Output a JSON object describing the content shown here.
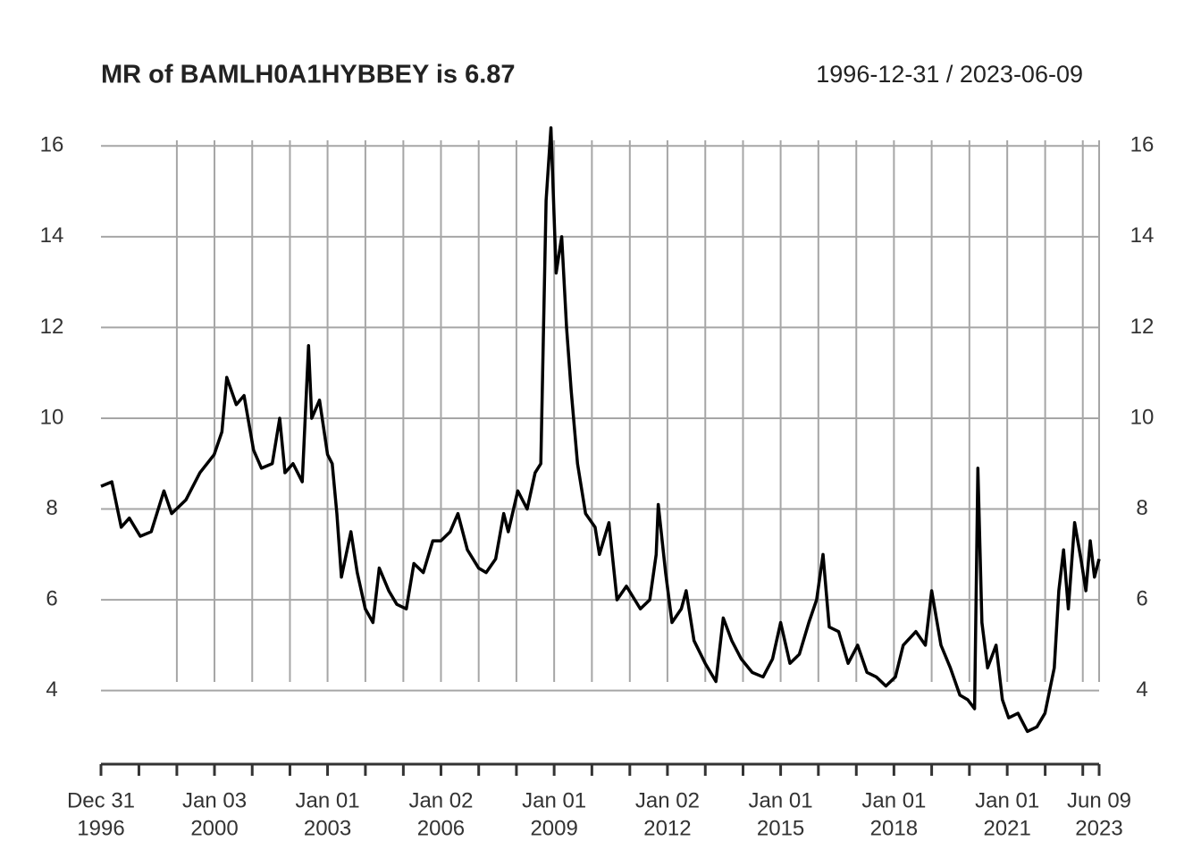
{
  "chart_data": {
    "type": "line",
    "title": "MR of BAMLH0A1HYBBEY is 6.87",
    "subtitle": "1996-12-31 / 2023-06-09",
    "x": [
      "1996-12-31",
      "1997-04-15",
      "1997-07-15",
      "1997-10-01",
      "1998-01-15",
      "1998-05-01",
      "1998-09-01",
      "1998-11-15",
      "1999-04-01",
      "1999-08-15",
      "1999-12-31",
      "2000-03-15",
      "2000-05-01",
      "2000-08-01",
      "2000-10-15",
      "2001-01-15",
      "2001-04-01",
      "2001-07-15",
      "2001-09-25",
      "2001-11-15",
      "2002-02-01",
      "2002-05-01",
      "2002-07-01",
      "2002-08-01",
      "2002-10-15",
      "2003-01-01",
      "2003-02-15",
      "2003-04-01",
      "2003-05-15",
      "2003-08-15",
      "2003-10-15",
      "2004-01-01",
      "2004-03-15",
      "2004-05-15",
      "2004-08-15",
      "2004-11-01",
      "2005-02-01",
      "2005-04-15",
      "2005-07-15",
      "2005-10-15",
      "2006-01-01",
      "2006-04-01",
      "2006-06-15",
      "2006-09-15",
      "2007-01-01",
      "2007-03-15",
      "2007-06-15",
      "2007-09-01",
      "2007-10-15",
      "2008-01-15",
      "2008-04-15",
      "2008-07-01",
      "2008-08-25",
      "2008-10-15",
      "2008-12-01",
      "2009-01-20",
      "2009-03-15",
      "2009-05-01",
      "2009-06-15",
      "2009-08-15",
      "2009-11-01",
      "2010-02-01",
      "2010-03-15",
      "2010-06-15",
      "2010-09-01",
      "2010-12-01",
      "2011-04-15",
      "2011-07-15",
      "2011-09-15",
      "2011-10-05",
      "2011-12-15",
      "2012-02-15",
      "2012-05-15",
      "2012-07-01",
      "2012-09-15",
      "2013-01-01",
      "2013-04-15",
      "2013-06-25",
      "2013-09-15",
      "2013-12-15",
      "2014-04-01",
      "2014-07-15",
      "2014-10-15",
      "2015-01-01",
      "2015-04-01",
      "2015-07-01",
      "2015-10-01",
      "2015-12-15",
      "2016-02-15",
      "2016-04-15",
      "2016-07-15",
      "2016-10-15",
      "2017-01-15",
      "2017-04-15",
      "2017-07-15",
      "2017-10-15",
      "2018-01-15",
      "2018-04-01",
      "2018-08-01",
      "2018-11-01",
      "2019-01-01",
      "2019-04-01",
      "2019-07-01",
      "2019-10-01",
      "2019-12-15",
      "2020-02-20",
      "2020-03-23",
      "2020-05-01",
      "2020-06-25",
      "2020-09-15",
      "2020-11-15",
      "2021-01-15",
      "2021-04-15",
      "2021-07-15",
      "2021-10-15",
      "2022-01-01",
      "2022-04-01",
      "2022-05-15",
      "2022-06-30",
      "2022-08-15",
      "2022-10-15",
      "2022-12-15",
      "2023-02-01",
      "2023-03-15",
      "2023-04-25",
      "2023-06-09"
    ],
    "series": [
      {
        "name": "BAMLH0A1HYBBEY",
        "color": "#000000",
        "values": [
          8.5,
          8.6,
          7.6,
          7.8,
          7.4,
          7.5,
          8.4,
          7.9,
          8.2,
          8.8,
          9.2,
          9.7,
          10.9,
          10.3,
          10.5,
          9.3,
          8.9,
          9.0,
          10.0,
          8.8,
          9.0,
          8.6,
          11.6,
          10.0,
          10.4,
          9.2,
          9.0,
          7.9,
          6.5,
          7.5,
          6.6,
          5.8,
          5.5,
          6.7,
          6.2,
          5.9,
          5.8,
          6.8,
          6.6,
          7.3,
          7.3,
          7.5,
          7.9,
          7.1,
          6.7,
          6.6,
          6.9,
          7.9,
          7.5,
          8.4,
          8.0,
          8.8,
          9.0,
          14.8,
          16.4,
          13.2,
          14.0,
          12.0,
          10.6,
          9.0,
          7.9,
          7.6,
          7.0,
          7.7,
          6.0,
          6.3,
          5.8,
          6.0,
          7.0,
          8.1,
          6.6,
          5.5,
          5.8,
          6.2,
          5.1,
          4.6,
          4.2,
          5.6,
          5.1,
          4.7,
          4.4,
          4.3,
          4.7,
          5.5,
          4.6,
          4.8,
          5.5,
          6.0,
          7.0,
          5.4,
          5.3,
          4.6,
          5.0,
          4.4,
          4.3,
          4.1,
          4.3,
          5.0,
          5.3,
          5.0,
          6.2,
          5.0,
          4.5,
          3.9,
          3.8,
          3.6,
          8.9,
          5.5,
          4.5,
          5.0,
          3.8,
          3.4,
          3.5,
          3.1,
          3.2,
          3.5,
          4.5,
          6.2,
          7.1,
          5.8,
          7.7,
          6.9,
          6.2,
          7.3,
          6.5,
          6.9
        ]
      }
    ],
    "xlim": [
      "1996-12-31",
      "2023-06-09"
    ],
    "xticks": [
      {
        "value": "1996-12-31",
        "label": [
          "Dec 31",
          "1996"
        ]
      },
      {
        "value": "1998-01-02",
        "label": null
      },
      {
        "value": "1999-01-04",
        "label": null
      },
      {
        "value": "2000-01-03",
        "label": [
          "Jan 03",
          "2000"
        ]
      },
      {
        "value": "2001-01-02",
        "label": null
      },
      {
        "value": "2002-01-02",
        "label": null
      },
      {
        "value": "2003-01-01",
        "label": [
          "Jan 01",
          "2003"
        ]
      },
      {
        "value": "2004-01-02",
        "label": null
      },
      {
        "value": "2005-01-03",
        "label": null
      },
      {
        "value": "2006-01-02",
        "label": [
          "Jan 02",
          "2006"
        ]
      },
      {
        "value": "2007-01-02",
        "label": null
      },
      {
        "value": "2008-01-02",
        "label": null
      },
      {
        "value": "2009-01-01",
        "label": [
          "Jan 01",
          "2009"
        ]
      },
      {
        "value": "2010-01-01",
        "label": null
      },
      {
        "value": "2011-01-03",
        "label": null
      },
      {
        "value": "2012-01-02",
        "label": [
          "Jan 02",
          "2012"
        ]
      },
      {
        "value": "2013-01-02",
        "label": null
      },
      {
        "value": "2014-01-02",
        "label": null
      },
      {
        "value": "2015-01-01",
        "label": [
          "Jan 01",
          "2015"
        ]
      },
      {
        "value": "2016-01-01",
        "label": null
      },
      {
        "value": "2017-01-02",
        "label": null
      },
      {
        "value": "2018-01-01",
        "label": [
          "Jan 01",
          "2018"
        ]
      },
      {
        "value": "2019-01-01",
        "label": null
      },
      {
        "value": "2020-01-01",
        "label": null
      },
      {
        "value": "2021-01-01",
        "label": [
          "Jan 01",
          "2021"
        ]
      },
      {
        "value": "2022-01-03",
        "label": null
      },
      {
        "value": "2023-01-02",
        "label": null
      },
      {
        "value": "2023-06-09",
        "label": [
          "Jun 09",
          "2023"
        ]
      }
    ],
    "ylim": [
      2.3,
      16.4
    ],
    "yticks": [
      4,
      6,
      8,
      10,
      12,
      14,
      16
    ],
    "grid": true
  }
}
